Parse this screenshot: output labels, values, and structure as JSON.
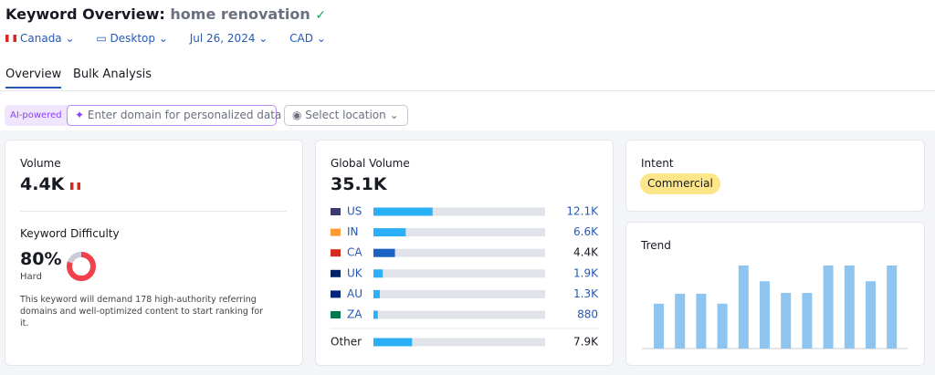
{
  "header": {
    "title": "Keyword Overview:",
    "keyword": "home renovation",
    "filters": [
      "Canada",
      "Desktop",
      "Jul 26, 2024",
      "CAD"
    ]
  },
  "tabs": [
    "Overview",
    "Bulk Analysis"
  ],
  "ai": {
    "badge": "AI-powered",
    "placeholder": "Enter domain for personalized data",
    "location": "Select location"
  },
  "volume": {
    "label": "Volume",
    "value": "4.4K"
  },
  "difficulty": {
    "label": "Keyword Difficulty",
    "value": 80,
    "value_label": "80%",
    "level": "Hard",
    "description": "This keyword will demand 178 high-authority referring domains and well-optimized content to start ranking for it."
  },
  "global_volume": {
    "label": "Global Volume",
    "total": 35100,
    "total_label": "35.1K",
    "rows": [
      {
        "country": "US",
        "value": 12100,
        "label": "12.1K"
      },
      {
        "country": "IN",
        "value": 6600,
        "label": "6.6K"
      },
      {
        "country": "CA",
        "value": 4400,
        "label": "4.4K"
      },
      {
        "country": "UK",
        "value": 1900,
        "label": "1.9K"
      },
      {
        "country": "AU",
        "value": 1300,
        "label": "1.3K"
      },
      {
        "country": "ZA",
        "value": 880,
        "label": "880"
      }
    ],
    "other": {
      "country": "Other",
      "value": 7900,
      "label": "7.9K"
    }
  },
  "intent": {
    "label": "Intent",
    "value": "Commercial"
  },
  "trend": {
    "label": "Trend",
    "values": [
      54,
      66,
      66,
      54,
      100,
      81,
      67,
      67,
      100,
      100,
      81,
      100
    ]
  }
}
